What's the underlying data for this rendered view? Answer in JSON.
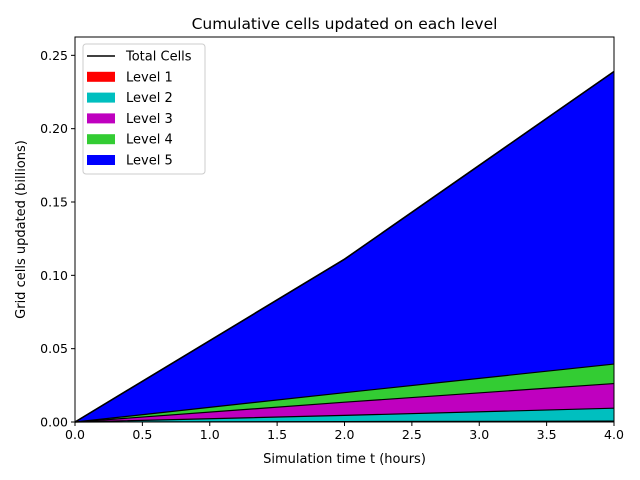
{
  "chart_data": {
    "type": "area",
    "title": "Cumulative cells updated on each level",
    "xlabel": "Simulation time t (hours)",
    "ylabel": "Grid cells updated (billions)",
    "xlim": [
      0.0,
      4.0
    ],
    "ylim": [
      0.0,
      0.2625
    ],
    "xticks": [
      "0.0",
      "0.5",
      "1.0",
      "1.5",
      "2.0",
      "2.5",
      "3.0",
      "3.5",
      "4.0"
    ],
    "yticks": [
      "0.00",
      "0.05",
      "0.10",
      "0.15",
      "0.20",
      "0.25"
    ],
    "stacked": true,
    "grid": false,
    "legend_position": "upper-left",
    "x": [
      0.0,
      2.0,
      4.0
    ],
    "total": {
      "name": "Total Cells",
      "color": "#000000",
      "values": [
        0.0,
        0.111,
        0.239
      ]
    },
    "series": [
      {
        "name": "Level 1",
        "color": "#ff0000",
        "values": [
          0.0,
          0.0003,
          0.0006
        ]
      },
      {
        "name": "Level 2",
        "color": "#00bfbf",
        "values": [
          0.0,
          0.0042,
          0.0088
        ]
      },
      {
        "name": "Level 3",
        "color": "#bf00bf",
        "values": [
          0.0,
          0.009,
          0.0168
        ]
      },
      {
        "name": "Level 4",
        "color": "#33cc33",
        "values": [
          0.0,
          0.0065,
          0.0133
        ]
      },
      {
        "name": "Level 5",
        "color": "#0000ff",
        "values": [
          0.0,
          0.091,
          0.1995
        ]
      }
    ]
  }
}
